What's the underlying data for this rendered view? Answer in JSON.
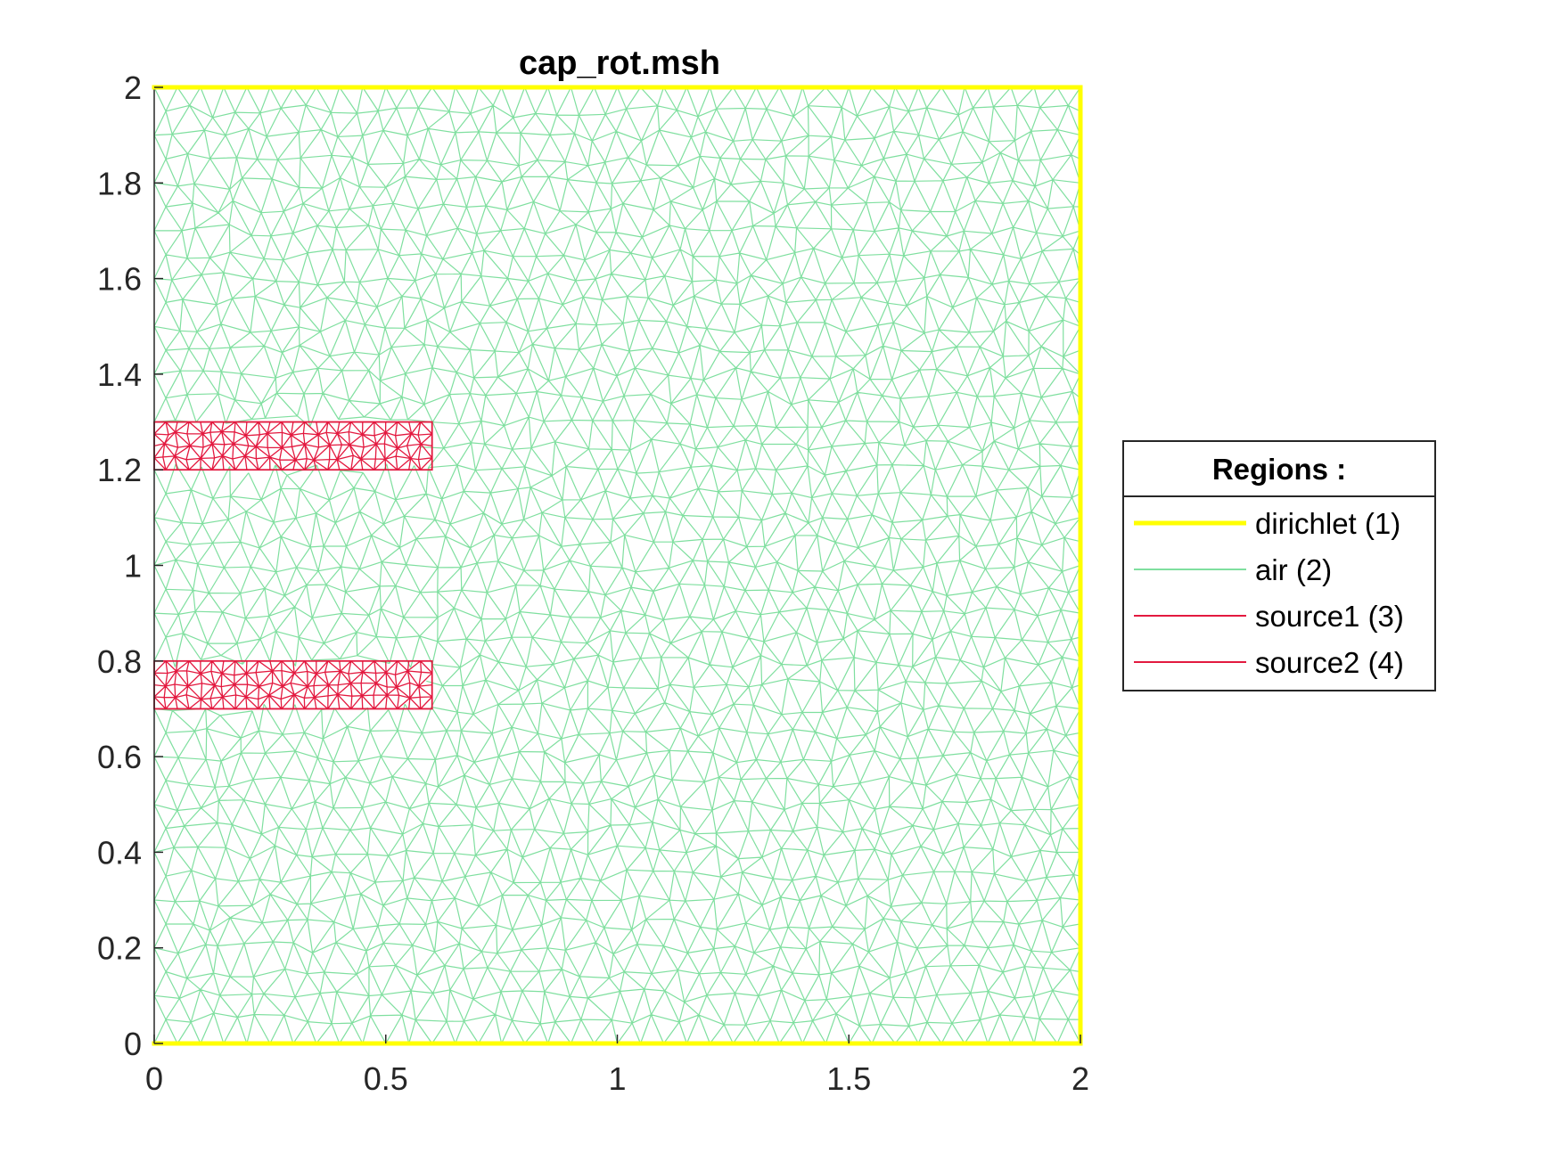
{
  "chart_data": {
    "type": "mesh",
    "title": "cap_rot.msh",
    "xlabel": "",
    "ylabel": "",
    "xlim": [
      0,
      2
    ],
    "ylim": [
      0,
      2
    ],
    "xticks": [
      0,
      0.5,
      1,
      1.5,
      2
    ],
    "xtick_labels": [
      "0",
      "0.5",
      "1",
      "1.5",
      "2"
    ],
    "yticks": [
      0,
      0.2,
      0.4,
      0.6,
      0.8,
      1,
      1.2,
      1.4,
      1.6,
      1.8,
      2
    ],
    "ytick_labels": [
      "0",
      "0.2",
      "0.4",
      "0.6",
      "0.8",
      "1",
      "1.2",
      "1.4",
      "1.6",
      "1.8",
      "2"
    ],
    "grid": false,
    "legend": {
      "title": "Regions :",
      "placement": "right-outside",
      "entries": [
        {
          "label": "dirichlet (1)",
          "color": "#ffff00",
          "width": "thick"
        },
        {
          "label": "air (2)",
          "color": "#7fdf9f",
          "width": "thin"
        },
        {
          "label": "source1 (3)",
          "color": "#e3193f",
          "width": "thin"
        },
        {
          "label": "source2 (4)",
          "color": "#e3193f",
          "width": "thin"
        }
      ]
    },
    "regions": [
      {
        "name": "dirichlet (1)",
        "kind": "boundary",
        "color": "#ffff00",
        "edges": [
          [
            [
              0,
              0
            ],
            [
              2,
              0
            ]
          ],
          [
            [
              2,
              0
            ],
            [
              2,
              2
            ]
          ],
          [
            [
              2,
              2
            ],
            [
              0,
              2
            ]
          ]
        ]
      },
      {
        "name": "air (2)",
        "kind": "triangulated-domain",
        "color": "#7fdf9f",
        "x_range": [
          0,
          2
        ],
        "y_range": [
          0,
          2
        ]
      },
      {
        "name": "source1 (3)",
        "kind": "triangulated-rectangle",
        "color": "#e3193f",
        "x_range": [
          0,
          0.6
        ],
        "y_range": [
          1.2,
          1.3
        ]
      },
      {
        "name": "source2 (4)",
        "kind": "triangulated-rectangle",
        "color": "#e3193f",
        "x_range": [
          0,
          0.6
        ],
        "y_range": [
          0.7,
          0.8
        ]
      }
    ]
  }
}
